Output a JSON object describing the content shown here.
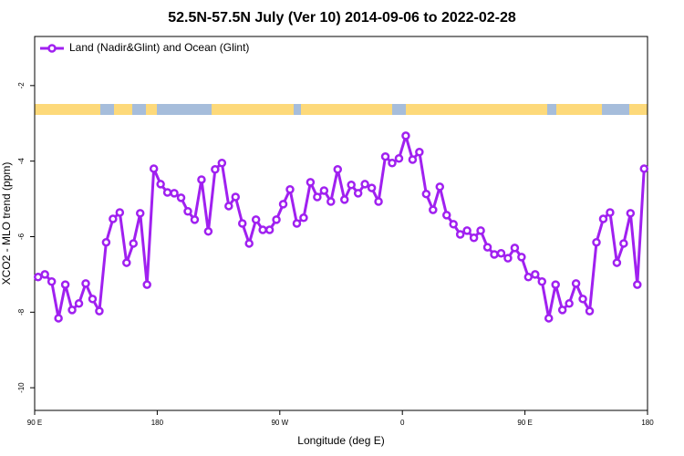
{
  "chart_data": {
    "type": "line",
    "title": "52.5N-57.5N July (Ver 10)   2014-09-06 to 2022-02-28",
    "x_label": "Longitude (deg E)",
    "y_label": "XCO2 - MLO trend (ppm)",
    "xlim": [
      90,
      540
    ],
    "ylim": [
      -10.6,
      -0.7
    ],
    "xticks": [
      {
        "value": 90,
        "label": "90 E"
      },
      {
        "value": 180,
        "label": "180"
      },
      {
        "value": 270,
        "label": "90 W"
      },
      {
        "value": 360,
        "label": "0"
      },
      {
        "value": 450,
        "label": "90 E"
      },
      {
        "value": 540,
        "label": "180"
      }
    ],
    "yticks": [
      -2,
      -4,
      -6,
      -8,
      -10
    ],
    "legend": "top-left",
    "x": [
      92.5,
      97.5,
      102.5,
      107.5,
      112.5,
      117.5,
      122.5,
      127.5,
      132.5,
      137.5,
      142.5,
      147.5,
      152.5,
      157.5,
      162.5,
      167.5,
      172.5,
      177.5,
      182.5,
      187.5,
      192.5,
      197.5,
      202.5,
      207.5,
      212.5,
      217.5,
      222.5,
      227.5,
      232.5,
      237.5,
      242.5,
      247.5,
      252.5,
      257.5,
      262.5,
      267.5,
      272.5,
      277.5,
      282.5,
      287.5,
      292.5,
      297.5,
      302.5,
      307.5,
      312.5,
      317.5,
      322.5,
      327.5,
      332.5,
      337.5,
      342.5,
      347.5,
      352.5,
      357.5,
      362.5,
      367.5,
      372.5,
      377.5,
      382.5,
      387.5,
      392.5,
      397.5,
      402.5,
      407.5,
      412.5,
      417.5,
      422.5,
      427.5,
      432.5,
      437.5,
      442.5,
      447.5,
      452.5,
      457.5,
      462.5,
      467.5,
      472.5,
      477.5,
      482.5,
      487.5,
      492.5,
      497.5,
      502.5,
      507.5,
      512.5,
      517.5,
      522.5,
      527.5,
      532.5,
      537.5
    ],
    "series": [
      {
        "name": "Land (Nadir&Glint) and Ocean (Glint)",
        "color": "#a020f0",
        "values": [
          -7.07,
          -7.0,
          -7.19,
          -8.16,
          -7.27,
          -7.94,
          -7.77,
          -7.24,
          -7.65,
          -7.97,
          -6.15,
          -5.53,
          -5.36,
          -6.69,
          -6.18,
          -5.38,
          -7.27,
          -4.2,
          -4.61,
          -4.83,
          -4.85,
          -4.97,
          -5.33,
          -5.55,
          -4.49,
          -5.86,
          -4.22,
          -4.05,
          -5.19,
          -4.95,
          -5.65,
          -6.18,
          -5.55,
          -5.82,
          -5.82,
          -5.55,
          -5.14,
          -4.75,
          -5.65,
          -5.5,
          -4.56,
          -4.95,
          -4.78,
          -5.07,
          -4.22,
          -5.02,
          -4.63,
          -4.85,
          -4.61,
          -4.71,
          -5.07,
          -3.88,
          -4.05,
          -3.93,
          -3.33,
          -3.96,
          -3.76,
          -4.87,
          -5.29,
          -4.68,
          -5.43,
          -5.67,
          -5.94,
          -5.84,
          -6.03,
          -5.84,
          -6.28,
          -6.47,
          -6.44,
          -6.57,
          -6.3,
          -6.54,
          -7.07,
          -7.0,
          -7.19,
          -8.16,
          -7.27,
          -7.94,
          -7.77,
          -7.24,
          -7.65,
          -7.97,
          -6.15,
          -5.53,
          -5.36,
          -6.69,
          -6.18,
          -5.38,
          -7.27,
          -4.2
        ]
      }
    ]
  }
}
